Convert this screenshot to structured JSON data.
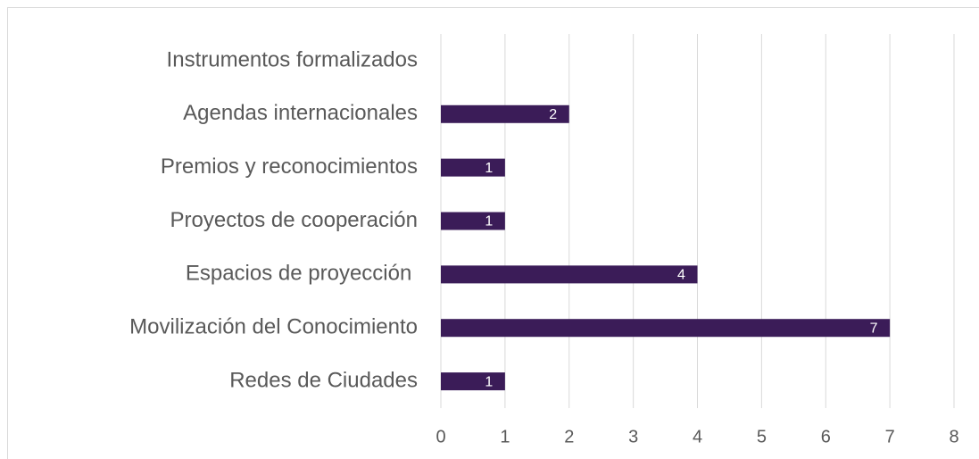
{
  "chart_data": {
    "type": "bar",
    "orientation": "horizontal",
    "categories": [
      "Instrumentos formalizados",
      "Agendas internacionales",
      "Premios y reconocimientos",
      "Proyectos de cooperación",
      "Espacios de proyección ",
      "Movilización del Conocimiento",
      "Redes de Ciudades"
    ],
    "values": [
      0,
      2,
      1,
      1,
      4,
      7,
      1
    ],
    "color": "#3b1c58",
    "xlim": [
      0,
      8
    ],
    "xticks": [
      0,
      1,
      2,
      3,
      4,
      5,
      6,
      7,
      8
    ],
    "grid": true
  }
}
